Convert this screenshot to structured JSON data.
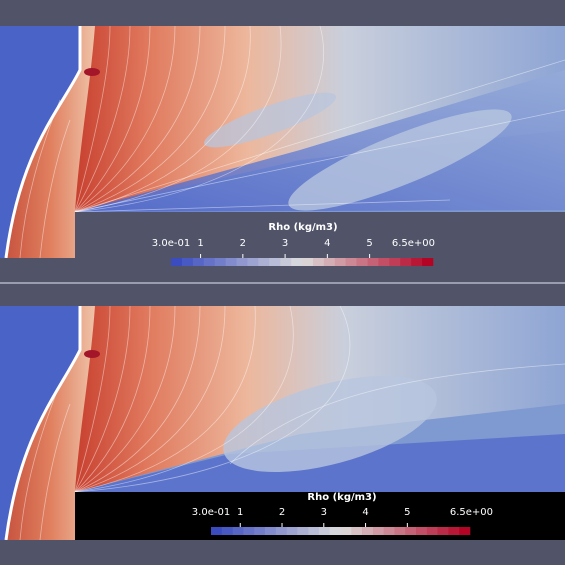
{
  "views": [
    {
      "id": "top",
      "background": "#515469",
      "legend_background": "#515469",
      "colorbar": {
        "title": "Rho (kg/m3)",
        "min_label": "3.0e-01",
        "max_label": "6.5e+00",
        "tick_labels": [
          "1",
          "2",
          "3",
          "4",
          "5"
        ],
        "tick_values": [
          1,
          2,
          3,
          4,
          5
        ],
        "range": [
          0.3,
          6.5
        ]
      }
    },
    {
      "id": "bottom",
      "background": "#515469",
      "legend_background": "#000000",
      "colorbar": {
        "title": "Rho (kg/m3)",
        "min_label": "3.0e-01",
        "max_label": "6.5e+00",
        "tick_labels": [
          "1",
          "2",
          "3",
          "4",
          "5"
        ],
        "tick_values": [
          1,
          2,
          3,
          4,
          5
        ],
        "range": [
          0.3,
          6.5
        ]
      }
    }
  ],
  "colormap": {
    "name": "Cool to Warm",
    "low": "#3b4cc0",
    "mid": "#dddddd",
    "high": "#b40426"
  }
}
